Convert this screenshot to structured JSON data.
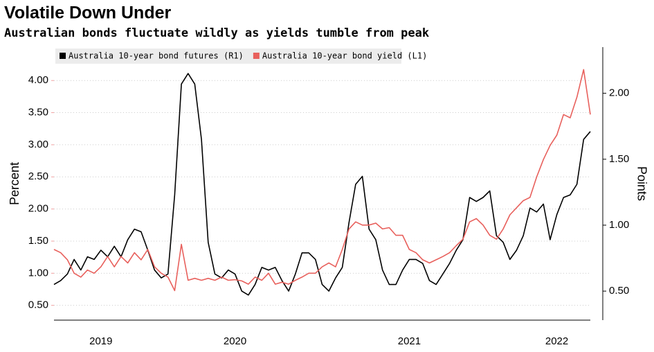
{
  "chart_data": {
    "type": "line",
    "title": "Volatile Down Under",
    "subtitle": "Australian bonds fluctuate wildly as yields tumble from peak",
    "ylabel": "Percent",
    "y2label": "Points",
    "categories": [
      null,
      null,
      null,
      null,
      null,
      null,
      null,
      "2019",
      null,
      null,
      null,
      null,
      null,
      null,
      null,
      null,
      null,
      null,
      null,
      null,
      null,
      null,
      null,
      null,
      null,
      null,
      null,
      "2020",
      null,
      null,
      null,
      null,
      null,
      null,
      null,
      null,
      null,
      null,
      null,
      null,
      null,
      null,
      null,
      null,
      null,
      null,
      null,
      null,
      null,
      null,
      null,
      null,
      null,
      "2021",
      null,
      null,
      null,
      null,
      null,
      null,
      null,
      null,
      null,
      null,
      null,
      null,
      null,
      null,
      null,
      null,
      null,
      null,
      null,
      null,
      null,
      "2022",
      null,
      null,
      null,
      null,
      null
    ],
    "series": [
      {
        "name": "Australia 10-year bond futures (R1)",
        "color": "#000000",
        "axis": "y2",
        "values": [
          0.55,
          0.58,
          0.63,
          0.74,
          0.66,
          0.76,
          0.74,
          0.81,
          0.76,
          0.84,
          0.76,
          0.89,
          0.97,
          0.95,
          0.81,
          0.66,
          0.6,
          0.63,
          1.23,
          2.07,
          2.15,
          2.07,
          1.65,
          0.87,
          0.63,
          0.6,
          0.66,
          0.63,
          0.5,
          0.47,
          0.55,
          0.68,
          0.66,
          0.68,
          0.58,
          0.5,
          0.63,
          0.79,
          0.79,
          0.74,
          0.55,
          0.5,
          0.6,
          0.68,
          1.02,
          1.31,
          1.37,
          0.97,
          0.89,
          0.66,
          0.55,
          0.55,
          0.66,
          0.74,
          0.74,
          0.71,
          0.58,
          0.55,
          0.63,
          0.71,
          0.81,
          0.89,
          1.21,
          1.18,
          1.21,
          1.26,
          0.92,
          0.87,
          0.74,
          0.81,
          0.92,
          1.13,
          1.1,
          1.16,
          0.89,
          1.08,
          1.21,
          1.23,
          1.31,
          1.65,
          1.71
        ]
      },
      {
        "name": "Australia 10-year bond yield (L1)",
        "color": "#e8605c",
        "values": [
          1.37,
          1.32,
          1.21,
          1.0,
          0.94,
          1.05,
          1.0,
          1.1,
          1.26,
          1.1,
          1.26,
          1.16,
          1.32,
          1.21,
          1.37,
          1.1,
          1.0,
          0.94,
          0.73,
          1.45,
          0.89,
          0.92,
          0.89,
          0.92,
          0.89,
          0.94,
          0.89,
          0.9,
          0.88,
          0.83,
          0.94,
          0.89,
          1.0,
          0.83,
          0.86,
          0.83,
          0.89,
          0.94,
          1.0,
          1.0,
          1.1,
          1.16,
          1.1,
          1.37,
          1.69,
          1.8,
          1.75,
          1.75,
          1.78,
          1.69,
          1.71,
          1.59,
          1.59,
          1.37,
          1.32,
          1.21,
          1.16,
          1.21,
          1.26,
          1.32,
          1.43,
          1.53,
          1.8,
          1.85,
          1.75,
          1.59,
          1.53,
          1.69,
          1.91,
          2.02,
          2.13,
          2.18,
          2.5,
          2.77,
          2.99,
          3.15,
          3.47,
          3.42,
          3.74,
          4.17,
          3.47
        ]
      }
    ],
    "ylim": [
      0.27,
      4.52
    ],
    "yticks": [
      {
        "value": 0.5,
        "label": "0.50"
      },
      {
        "value": 1.0,
        "label": "1.00"
      },
      {
        "value": 1.5,
        "label": "1.50"
      },
      {
        "value": 2.0,
        "label": "2.00"
      },
      {
        "value": 2.5,
        "label": "2.50"
      },
      {
        "value": 3.0,
        "label": "3.00"
      },
      {
        "value": 3.5,
        "label": "3.50"
      },
      {
        "value": 4.0,
        "label": "4.00"
      }
    ],
    "y2lim": [
      0.28,
      2.35
    ],
    "y2ticks": [
      {
        "value": 0.5,
        "label": "0.50"
      },
      {
        "value": 1.0,
        "label": "1.00"
      },
      {
        "value": 1.5,
        "label": "1.50"
      },
      {
        "value": 2.0,
        "label": "2.00"
      }
    ],
    "grid": true
  }
}
